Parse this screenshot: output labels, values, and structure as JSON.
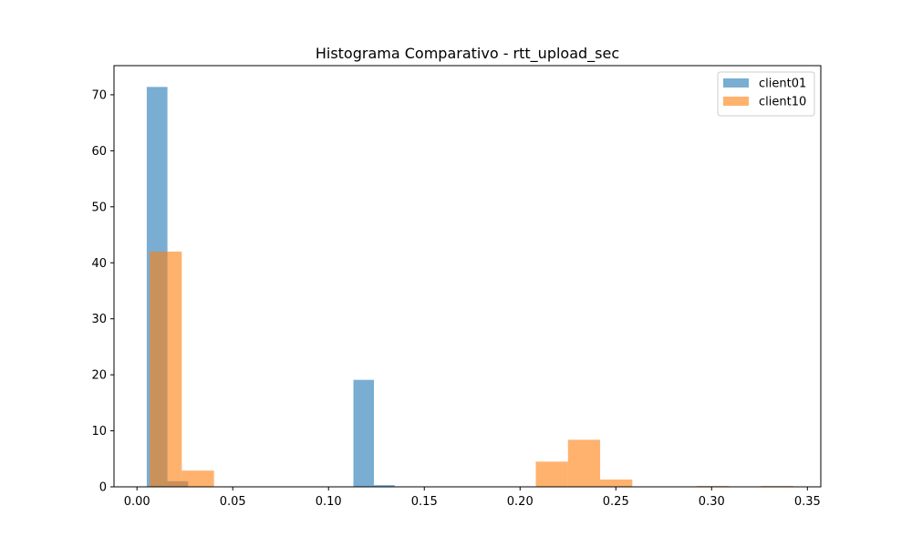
{
  "chart_data": {
    "type": "bar",
    "title": "Histograma Comparativo - rtt_upload_sec",
    "xlim": [
      -0.012,
      0.357
    ],
    "ylim": [
      0,
      75.2
    ],
    "xticks": [
      0.0,
      0.05,
      0.1,
      0.15,
      0.2,
      0.25,
      0.3,
      0.35
    ],
    "xtick_labels": [
      "0.00",
      "0.05",
      "0.10",
      "0.15",
      "0.20",
      "0.25",
      "0.30",
      "0.35"
    ],
    "yticks": [
      0,
      10,
      20,
      30,
      40,
      50,
      60,
      70
    ],
    "ytick_labels": [
      "0",
      "10",
      "20",
      "30",
      "40",
      "50",
      "60",
      "70"
    ],
    "legend_position": "upper right",
    "series": [
      {
        "name": "client01",
        "color": "#1f77b4",
        "alpha": 0.6,
        "bin_edges": [
          0.0051,
          0.0159,
          0.0267,
          0.0374,
          0.0482,
          0.059,
          0.0698,
          0.0806,
          0.0914,
          0.1022,
          0.113,
          0.1237,
          0.1345
        ],
        "counts": [
          71.4,
          1.0,
          0,
          0,
          0,
          0,
          0,
          0,
          0,
          0,
          19.1,
          0.3
        ]
      },
      {
        "name": "client10",
        "color": "#ff7f0e",
        "alpha": 0.6,
        "bin_edges": [
          0.0066,
          0.0234,
          0.0402,
          0.057,
          0.0738,
          0.0906,
          0.1074,
          0.1242,
          0.141,
          0.1578,
          0.1746,
          0.1914,
          0.2082,
          0.225,
          0.2418,
          0.2586,
          0.2754,
          0.2922,
          0.309,
          0.3258,
          0.3426
        ],
        "counts": [
          42.0,
          2.9,
          0,
          0,
          0,
          0,
          0,
          0,
          0,
          0,
          0,
          0,
          4.5,
          8.4,
          1.3,
          0,
          0,
          0.15,
          0,
          0.15
        ]
      }
    ]
  }
}
